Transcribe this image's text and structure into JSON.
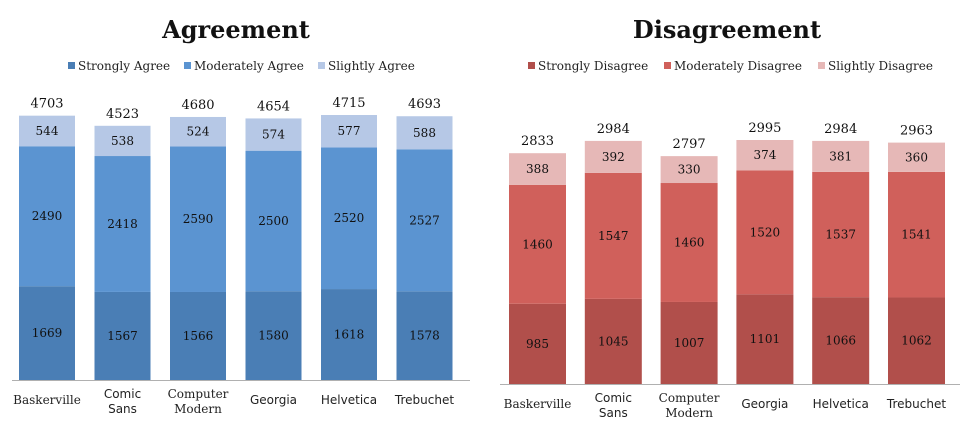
{
  "chart_data": [
    {
      "type": "bar",
      "stacked": true,
      "title": "Agreement",
      "legend_position": "top",
      "grid": false,
      "categories": [
        "Baskerville",
        "Comic Sans",
        "Computer Modern",
        "Georgia",
        "Helvetica",
        "Trebuchet"
      ],
      "totals": [
        4703,
        4523,
        4680,
        4654,
        4715,
        4693
      ],
      "series": [
        {
          "name": "Strongly Agree",
          "color": "#4a7eb5",
          "values": [
            1669,
            1567,
            1566,
            1580,
            1618,
            1578
          ]
        },
        {
          "name": "Moderately Agree",
          "color": "#5b94d1",
          "values": [
            2490,
            2418,
            2590,
            2500,
            2520,
            2527
          ]
        },
        {
          "name": "Slightly Agree",
          "color": "#b6c8e6",
          "values": [
            544,
            538,
            524,
            574,
            577,
            588
          ]
        }
      ],
      "ylim": [
        0,
        5000
      ]
    },
    {
      "type": "bar",
      "stacked": true,
      "title": "Disagreement",
      "legend_position": "top",
      "grid": false,
      "categories": [
        "Baskerville",
        "Comic Sans",
        "Computer Modern",
        "Georgia",
        "Helvetica",
        "Trebuchet"
      ],
      "totals": [
        2833,
        2984,
        2797,
        2995,
        2984,
        2963
      ],
      "series": [
        {
          "name": "Strongly Disagree",
          "color": "#b14f4b",
          "values": [
            985,
            1045,
            1007,
            1101,
            1066,
            1062
          ]
        },
        {
          "name": "Moderately Disagree",
          "color": "#d0605b",
          "values": [
            1460,
            1547,
            1460,
            1520,
            1537,
            1541
          ]
        },
        {
          "name": "Slightly Disagree",
          "color": "#e6b8b7",
          "values": [
            388,
            392,
            330,
            374,
            381,
            360
          ]
        }
      ],
      "ylim": [
        0,
        3400
      ]
    }
  ]
}
